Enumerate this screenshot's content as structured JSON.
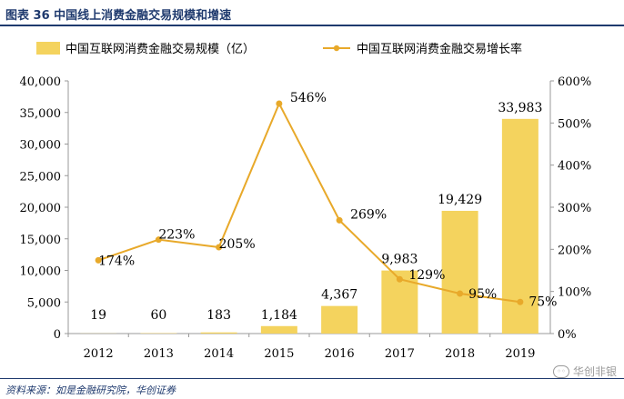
{
  "figure": {
    "title": "图表 36   中国线上消费金融交易规模和增速",
    "source": "资料来源：如是金融研究院，华创证券",
    "watermark": "华创非银"
  },
  "chart_data": {
    "type": "bar",
    "categories": [
      "2012",
      "2013",
      "2014",
      "2015",
      "2016",
      "2017",
      "2018",
      "2019"
    ],
    "series": [
      {
        "name": "中国互联网消费金融交易规模（亿）",
        "kind": "bar",
        "axis": "left",
        "values": [
          19,
          60,
          183,
          1184,
          4367,
          9983,
          19429,
          33983
        ],
        "labels": [
          "19",
          "60",
          "183",
          "1,184",
          "4,367",
          "9,983",
          "19,429",
          "33,983"
        ]
      },
      {
        "name": "中国互联网消费金融交易增长率",
        "kind": "line",
        "axis": "right",
        "values": [
          174,
          223,
          205,
          546,
          269,
          129,
          95,
          75
        ],
        "labels": [
          "174%",
          "223%",
          "205%",
          "546%",
          "269%",
          "129%",
          "95%",
          "75%"
        ]
      }
    ],
    "y_left": {
      "min": 0,
      "max": 40000,
      "ticks": [
        0,
        5000,
        10000,
        15000,
        20000,
        25000,
        30000,
        35000,
        40000
      ],
      "tick_labels": [
        "0",
        "5,000",
        "10,000",
        "15,000",
        "20,000",
        "25,000",
        "30,000",
        "35,000",
        "40,000"
      ]
    },
    "y_right": {
      "min": 0,
      "max": 600,
      "ticks": [
        0,
        100,
        200,
        300,
        400,
        500,
        600
      ],
      "tick_labels": [
        "0%",
        "100%",
        "200%",
        "300%",
        "400%",
        "500%",
        "600%"
      ]
    },
    "colors": {
      "bar": "#f4d35e",
      "line": "#e8a92a",
      "axis": "#999999",
      "grid": "#dddddd"
    },
    "legend": "top",
    "grid": false
  }
}
